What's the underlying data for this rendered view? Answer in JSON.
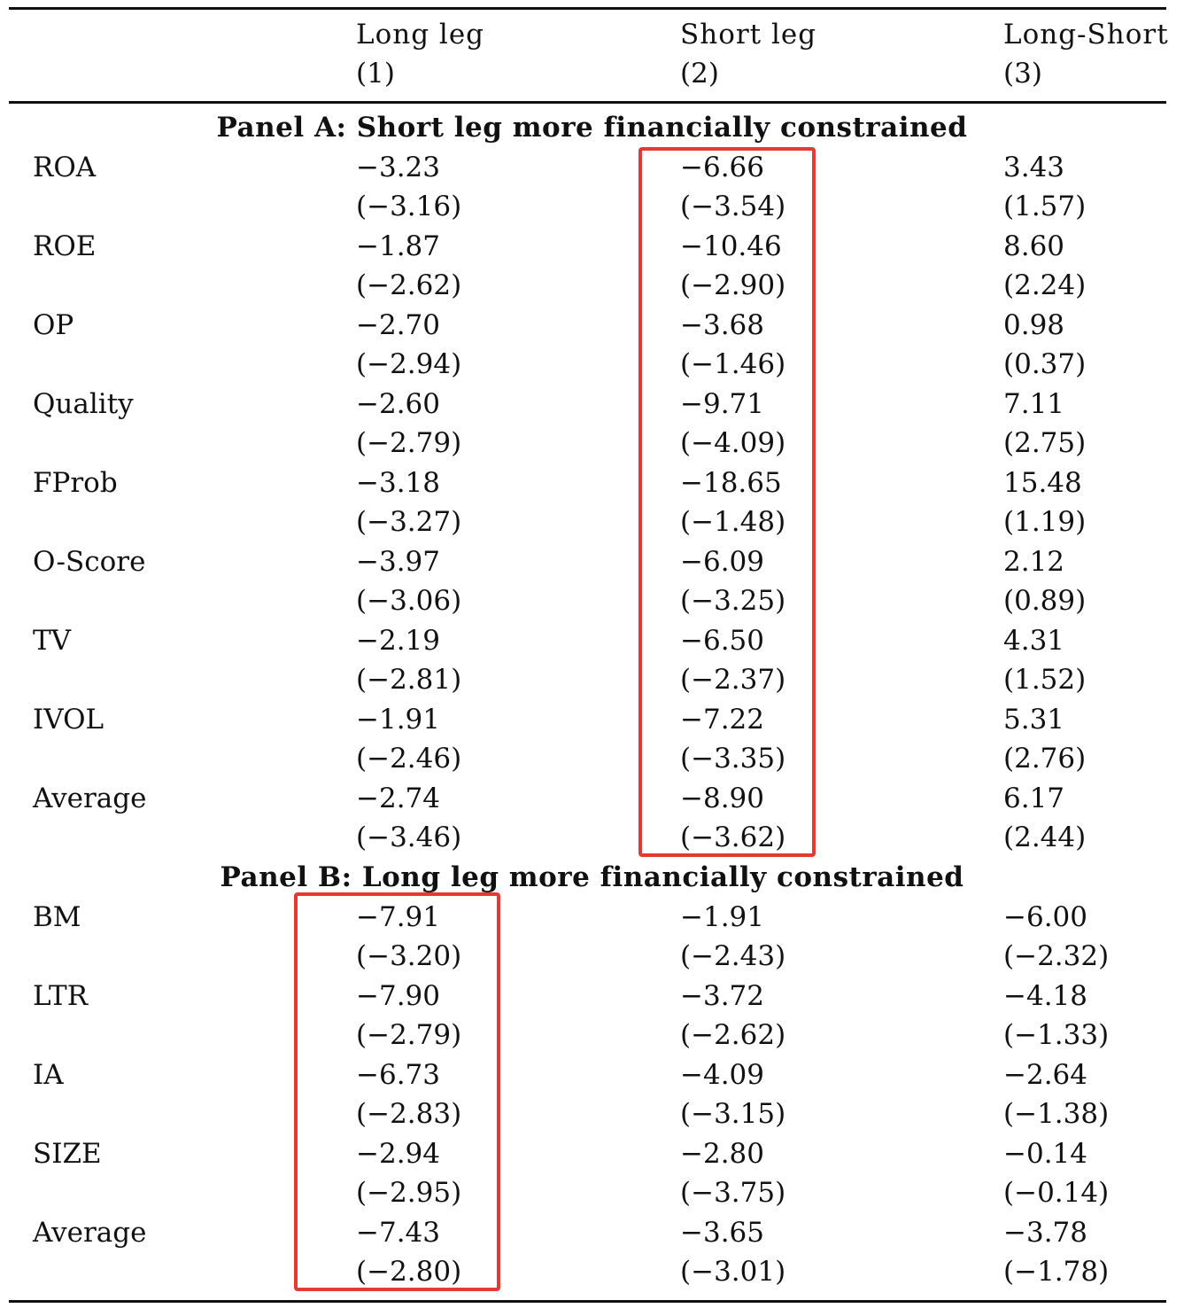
{
  "header": {
    "columns": [
      {
        "label": "Long  leg",
        "num": "(1)"
      },
      {
        "label": "Short  leg",
        "num": "(2)"
      },
      {
        "label": "Long-Short",
        "num": "(3)"
      }
    ]
  },
  "panels": [
    {
      "title": "Panel  A:  Short  leg  more  financially  constrained",
      "rows": [
        {
          "name": "ROA",
          "long": "−3.23",
          "long_t": "(−3.16)",
          "short": "−6.66",
          "short_t": "(−3.54)",
          "ls": "3.43",
          "ls_t": "(1.57)"
        },
        {
          "name": "ROE",
          "long": "−1.87",
          "long_t": "(−2.62)",
          "short": "−10.46",
          "short_t": "(−2.90)",
          "ls": "8.60",
          "ls_t": "(2.24)"
        },
        {
          "name": "OP",
          "long": "−2.70",
          "long_t": "(−2.94)",
          "short": "−3.68",
          "short_t": "(−1.46)",
          "ls": "0.98",
          "ls_t": "(0.37)"
        },
        {
          "name": "Quality",
          "long": "−2.60",
          "long_t": "(−2.79)",
          "short": "−9.71",
          "short_t": "(−4.09)",
          "ls": "7.11",
          "ls_t": "(2.75)"
        },
        {
          "name": "FProb",
          "long": "−3.18",
          "long_t": "(−3.27)",
          "short": "−18.65",
          "short_t": "(−1.48)",
          "ls": "15.48",
          "ls_t": "(1.19)"
        },
        {
          "name": "O-Score",
          "long": "−3.97",
          "long_t": "(−3.06)",
          "short": "−6.09",
          "short_t": "(−3.25)",
          "ls": "2.12",
          "ls_t": "(0.89)"
        },
        {
          "name": "TV",
          "long": "−2.19",
          "long_t": "(−2.81)",
          "short": "−6.50",
          "short_t": "(−2.37)",
          "ls": "4.31",
          "ls_t": "(1.52)"
        },
        {
          "name": "IVOL",
          "long": "−1.91",
          "long_t": "(−2.46)",
          "short": "−7.22",
          "short_t": "(−3.35)",
          "ls": "5.31",
          "ls_t": "(2.76)"
        },
        {
          "name": "Average",
          "long": "−2.74",
          "long_t": "(−3.46)",
          "short": "−8.90",
          "short_t": "(−3.62)",
          "ls": "6.17",
          "ls_t": "(2.44)"
        }
      ]
    },
    {
      "title": "Panel  B:  Long  leg  more  financially  constrained",
      "rows": [
        {
          "name": "BM",
          "long": "−7.91",
          "long_t": "(−3.20)",
          "short": "−1.91",
          "short_t": "(−2.43)",
          "ls": "−6.00",
          "ls_t": "(−2.32)"
        },
        {
          "name": "LTR",
          "long": "−7.90",
          "long_t": "(−2.79)",
          "short": "−3.72",
          "short_t": "(−2.62)",
          "ls": "−4.18",
          "ls_t": "(−1.33)"
        },
        {
          "name": "IA",
          "long": "−6.73",
          "long_t": "(−2.83)",
          "short": "−4.09",
          "short_t": "(−3.15)",
          "ls": "−2.64",
          "ls_t": "(−1.38)"
        },
        {
          "name": "SIZE",
          "long": "−2.94",
          "long_t": "(−2.95)",
          "short": "−2.80",
          "short_t": "(−3.75)",
          "ls": "−0.14",
          "ls_t": "(−0.14)"
        },
        {
          "name": "Average",
          "long": "−7.43",
          "long_t": "(−2.80)",
          "short": "−3.65",
          "short_t": "(−3.01)",
          "ls": "−3.78",
          "ls_t": "(−1.78)"
        }
      ]
    }
  ],
  "highlight_color": "#e53935"
}
